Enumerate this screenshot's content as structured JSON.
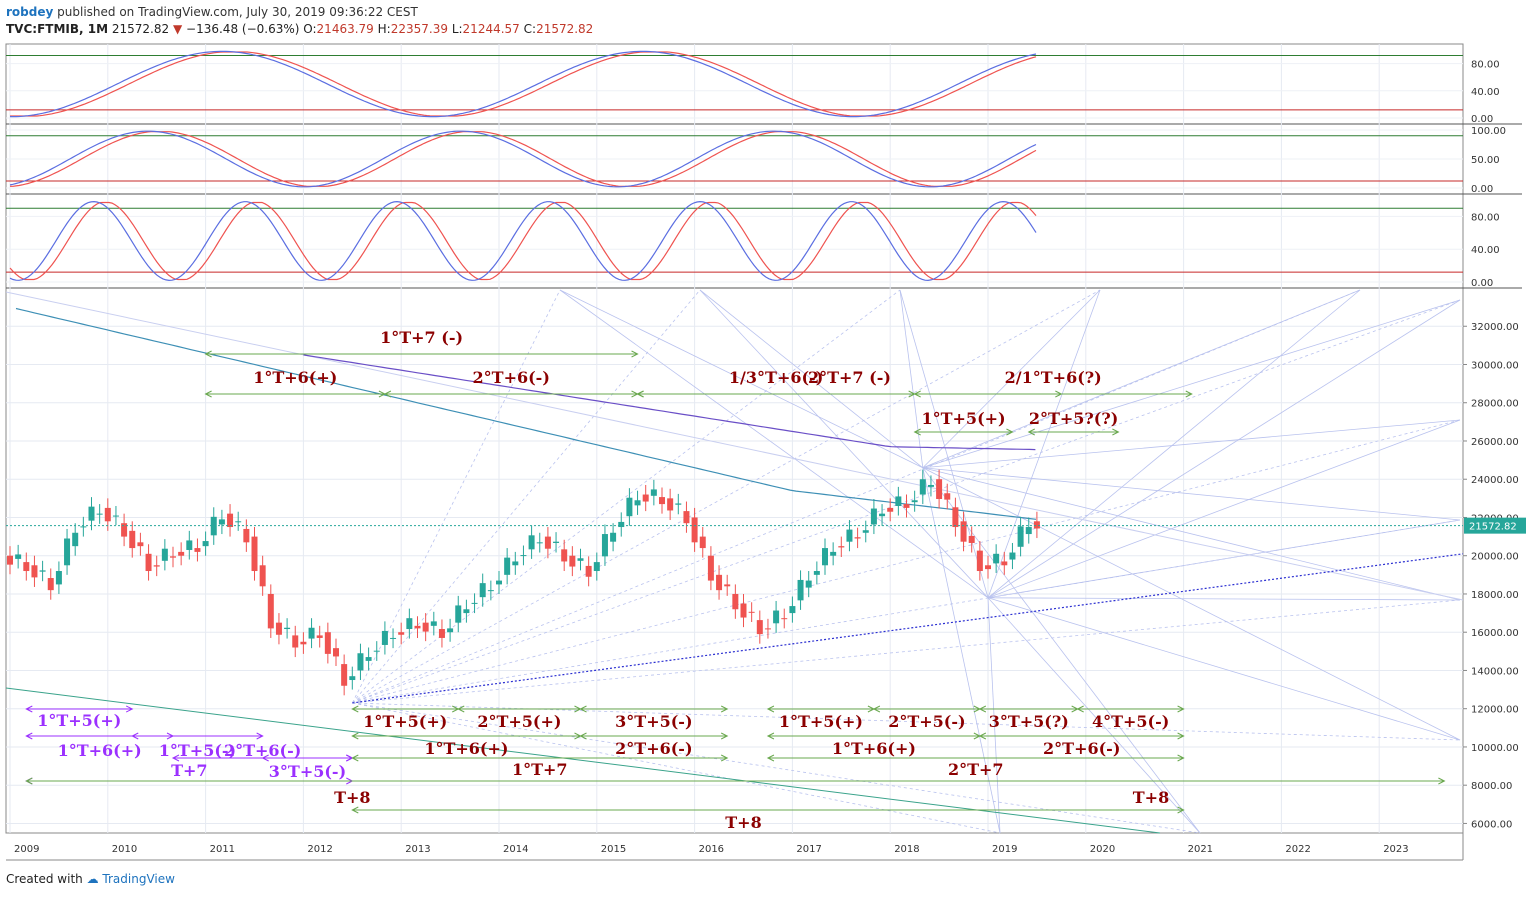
{
  "header": {
    "user": "robdey",
    "published": "published on TradingView.com, July 30, 2019 09:36:22 CEST",
    "symbol": "TVC:FTMIB, 1M",
    "last": "21572.82",
    "change_arrow": "▼",
    "change": "−136.48 (−0.63%)",
    "o_label": "O:",
    "o_value": "21463.79",
    "h_label": "H:",
    "h_value": "22357.39",
    "l_label": "L:",
    "l_value": "21244.57",
    "c_label": "C:",
    "c_value": "21572.82"
  },
  "footer": {
    "created": "Created with",
    "brand": "TradingView"
  },
  "colors": {
    "up": "#26a69a",
    "down": "#ef5350",
    "k_line": "#5b6ee1",
    "d_line": "#ef5350",
    "upper_band": "#2e7d32",
    "lower_band": "#c62828",
    "annot_dark": "#8b0000",
    "annot_purple": "#9b30ff",
    "arrow": "#6aa84f"
  },
  "chart_data": [
    {
      "type": "candlestick",
      "title": "TVC:FTMIB, 1M",
      "x_range": [
        "2009-01",
        "2023-12"
      ],
      "ylim": [
        5500,
        34000
      ],
      "y_ticks": [
        6000,
        8000,
        10000,
        12000,
        14000,
        16000,
        18000,
        20000,
        22000,
        24000,
        26000,
        28000,
        30000,
        32000
      ],
      "y_tick_labels": [
        "6000.00",
        "8000.00",
        "10000.00",
        "12000.00",
        "14000.00",
        "16000.00",
        "18000.00",
        "20000.00",
        "22000.00",
        "24000.00",
        "26000.00",
        "28000.00",
        "30000.00",
        "32000.00"
      ],
      "x_ticks": [
        "2009",
        "2010",
        "2011",
        "2012",
        "2013",
        "2014",
        "2015",
        "2016",
        "2017",
        "2018",
        "2019",
        "2020",
        "2021",
        "2022",
        "2023"
      ],
      "last_price_label": "21572.82",
      "last_price": 21572.82,
      "closes_quarterly": [
        {
          "t": "2009-01",
          "c": 19500
        },
        {
          "t": "2009-04",
          "c": 18500
        },
        {
          "t": "2009-07",
          "c": 21500
        },
        {
          "t": "2009-10",
          "c": 22500
        },
        {
          "t": "2010-01",
          "c": 21300
        },
        {
          "t": "2010-04",
          "c": 19500
        },
        {
          "t": "2010-07",
          "c": 20200
        },
        {
          "t": "2010-10",
          "c": 20500
        },
        {
          "t": "2011-01",
          "c": 22200
        },
        {
          "t": "2011-04",
          "c": 21000
        },
        {
          "t": "2011-07",
          "c": 16500
        },
        {
          "t": "2011-10",
          "c": 15500
        },
        {
          "t": "2012-01",
          "c": 16000
        },
        {
          "t": "2012-04",
          "c": 13500
        },
        {
          "t": "2012-07",
          "c": 15000
        },
        {
          "t": "2012-10",
          "c": 16000
        },
        {
          "t": "2013-01",
          "c": 16500
        },
        {
          "t": "2013-04",
          "c": 16000
        },
        {
          "t": "2013-07",
          "c": 17500
        },
        {
          "t": "2013-10",
          "c": 18500
        },
        {
          "t": "2014-01",
          "c": 20000
        },
        {
          "t": "2014-04",
          "c": 21000
        },
        {
          "t": "2014-07",
          "c": 20000
        },
        {
          "t": "2014-10",
          "c": 19200
        },
        {
          "t": "2015-01",
          "c": 21500
        },
        {
          "t": "2015-04",
          "c": 23200
        },
        {
          "t": "2015-07",
          "c": 23000
        },
        {
          "t": "2015-10",
          "c": 22000
        },
        {
          "t": "2016-01",
          "c": 19000
        },
        {
          "t": "2016-04",
          "c": 17500
        },
        {
          "t": "2016-07",
          "c": 16200
        },
        {
          "t": "2016-10",
          "c": 17000
        },
        {
          "t": "2017-01",
          "c": 19000
        },
        {
          "t": "2017-04",
          "c": 20500
        },
        {
          "t": "2017-07",
          "c": 21200
        },
        {
          "t": "2017-10",
          "c": 22500
        },
        {
          "t": "2018-01",
          "c": 22800
        },
        {
          "t": "2018-04",
          "c": 24000
        },
        {
          "t": "2018-07",
          "c": 21800
        },
        {
          "t": "2018-10",
          "c": 19500
        },
        {
          "t": "2019-01",
          "c": 19800
        },
        {
          "t": "2019-04",
          "c": 21800
        },
        {
          "t": "2019-07",
          "c": 21572.82
        }
      ]
    },
    {
      "type": "line",
      "name": "stoch-panel-1",
      "ylim": [
        0,
        100
      ],
      "y_tick_labels": [
        "0.00",
        "40.00",
        "80.00"
      ],
      "upper": 92,
      "lower": 12
    },
    {
      "type": "line",
      "name": "stoch-panel-2",
      "ylim": [
        0,
        100
      ],
      "y_tick_labels": [
        "0.00",
        "50.00",
        "100.00"
      ],
      "upper": 90,
      "lower": 12
    },
    {
      "type": "line",
      "name": "stoch-panel-3",
      "ylim": [
        0,
        100
      ],
      "y_tick_labels": [
        "0.00",
        "40.00",
        "80.00"
      ],
      "upper": 90,
      "lower": 12
    }
  ],
  "annotations": {
    "top": [
      {
        "text": "1°T+7 (-)",
        "from": "2011-01",
        "to": "2015-06"
      },
      {
        "text": "2°T+7 (-)",
        "from": "2015-06",
        "to": "2019-10"
      },
      {
        "text": "1°T+6(+)",
        "from": "2011-01",
        "to": "2012-11"
      },
      {
        "text": "2°T+6(-)",
        "from": "2012-11",
        "to": "2015-06"
      },
      {
        "text": "1/3°T+6(-)",
        "from": "2015-06",
        "to": "2018-04"
      },
      {
        "text": "2/1°T+6(?)",
        "from": "2018-04",
        "to": "2021-02"
      },
      {
        "text": "1°T+5(+)",
        "from": "2018-04",
        "to": "2019-04"
      },
      {
        "text": "2°T+5?(?)",
        "from": "2019-06",
        "to": "2020-05"
      }
    ],
    "bottom_purple": [
      {
        "text": "1°T+5(+)",
        "from": "2009-03",
        "to": "2010-04"
      },
      {
        "text": "1°T+5(-)",
        "from": "2010-04",
        "to": "2011-08"
      },
      {
        "text": "3°T+5(-)",
        "from": "2011-08",
        "to": "2012-07"
      },
      {
        "text": "1°T+6(+)",
        "from": "2009-03",
        "to": "2010-09"
      },
      {
        "text": "2°T+6(-)",
        "from": "2010-09",
        "to": "2012-07"
      },
      {
        "text": "T+7",
        "from": "2009-03",
        "to": "2012-07"
      }
    ],
    "bottom_dark": [
      {
        "text": "1°T+5(+)",
        "from": "2012-07",
        "to": "2013-08"
      },
      {
        "text": "2°T+5(+)",
        "from": "2013-08",
        "to": "2014-11"
      },
      {
        "text": "3°T+5(-)",
        "from": "2014-11",
        "to": "2016-05"
      },
      {
        "text": "1°T+5(+)",
        "from": "2016-10",
        "to": "2017-11"
      },
      {
        "text": "2°T+5(-)",
        "from": "2017-11",
        "to": "2018-12"
      },
      {
        "text": "3°T+5(?)",
        "from": "2018-12",
        "to": "2019-12"
      },
      {
        "text": "4°T+5(-)",
        "from": "2019-12",
        "to": "2021-01"
      },
      {
        "text": "1°T+6(+)",
        "from": "2012-07",
        "to": "2014-11"
      },
      {
        "text": "2°T+6(-)",
        "from": "2014-11",
        "to": "2016-05"
      },
      {
        "text": "1°T+6(+)",
        "from": "2016-10",
        "to": "2018-12"
      },
      {
        "text": "2°T+6(-)",
        "from": "2018-12",
        "to": "2021-01"
      },
      {
        "text": "1°T+7",
        "from": "2012-07",
        "to": "2016-05"
      },
      {
        "text": "2°T+7",
        "from": "2016-10",
        "to": "2021-01"
      },
      {
        "text": "T+8",
        "from": "2009-03",
        "to": "2023-09"
      },
      {
        "text": "T+8",
        "from": "2012-07",
        "to": "2021-01"
      },
      {
        "text": "T+8",
        "from": "2012-07",
        "to": "2021-01"
      }
    ]
  }
}
